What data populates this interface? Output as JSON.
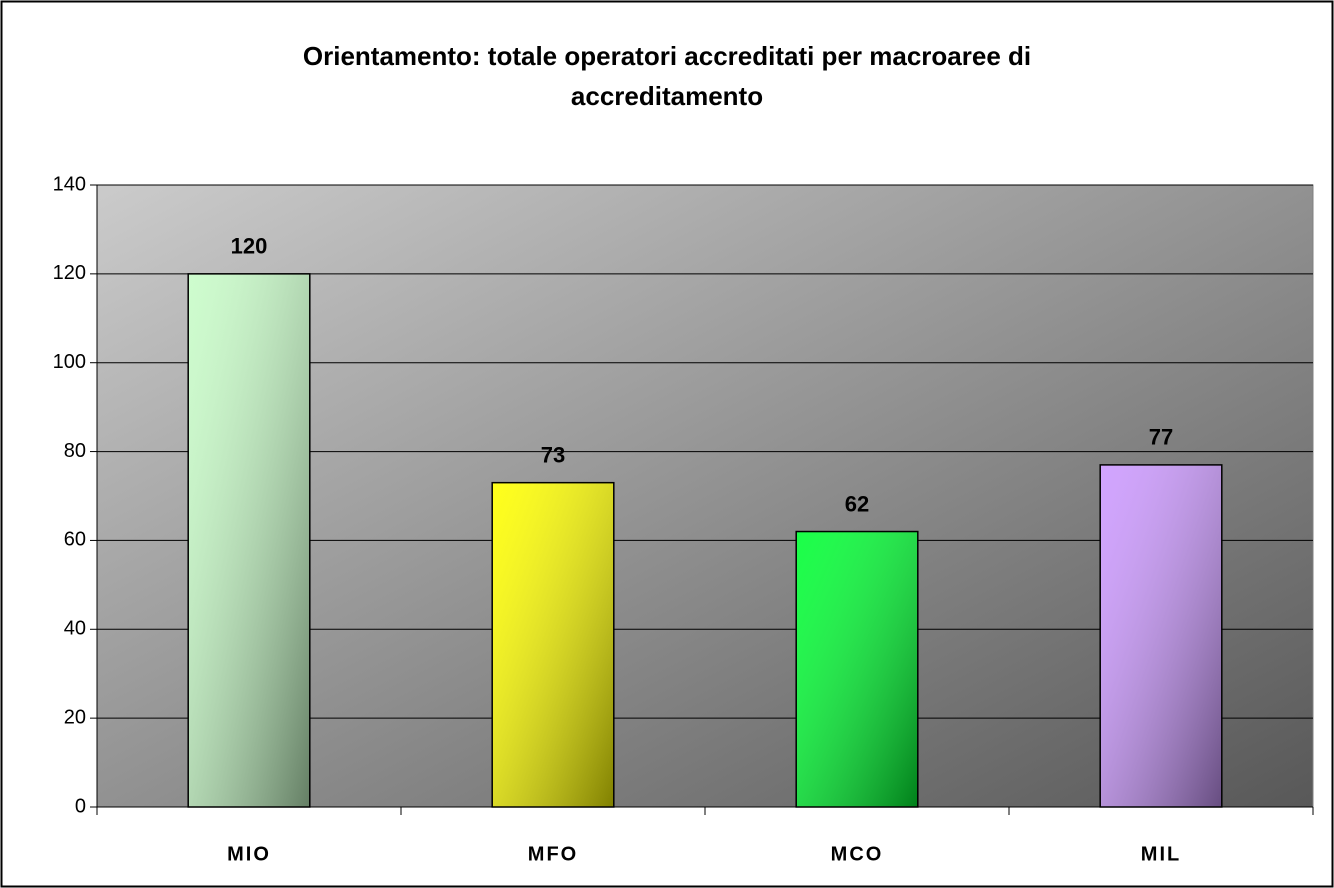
{
  "chart_data": {
    "type": "bar",
    "title": "Orientamento: totale operatori accreditati per macroaree di accreditamento",
    "categories": [
      "MIO",
      "MFO",
      "MCO",
      "MIL"
    ],
    "values": [
      120,
      73,
      62,
      77
    ],
    "colors": [
      "#c8fcc8",
      "#ffff00",
      "#00ff33",
      "#cc99ff"
    ],
    "ylim": [
      0,
      140
    ],
    "yticks": [
      0,
      20,
      40,
      60,
      80,
      100,
      120,
      140
    ],
    "grid": true
  }
}
